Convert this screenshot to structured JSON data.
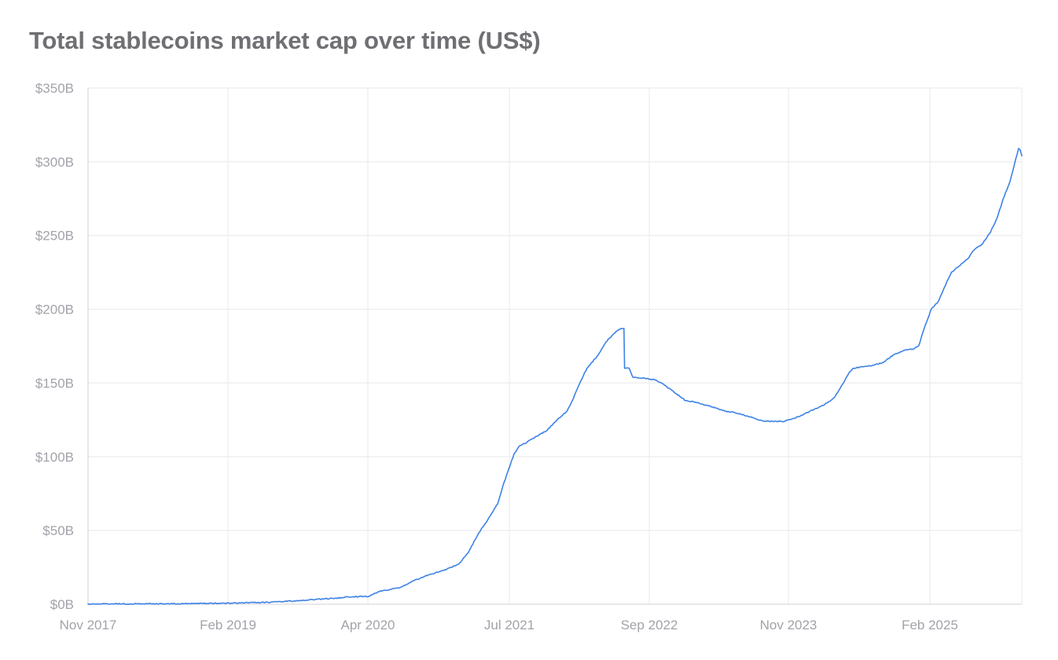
{
  "chart_data": {
    "type": "line",
    "title": "Total stablecoins market cap over time (US$)",
    "xlabel": "",
    "ylabel": "",
    "x_ticks": [
      "Nov 2017",
      "Feb 2019",
      "Apr 2020",
      "Jul 2021",
      "Sep 2022",
      "Nov 2023",
      "Feb 2025"
    ],
    "y_ticks": [
      "$0B",
      "$50B",
      "$100B",
      "$150B",
      "$200B",
      "$250B",
      "$300B",
      "$350B"
    ],
    "ylim": [
      0,
      350
    ],
    "y_unit": "billion US$",
    "xlim": [
      "2017-11-01",
      "2025-09-15"
    ],
    "grid": true,
    "legend": "none",
    "colors": {
      "series": "#3d82e6",
      "grid": "#ececf0",
      "text": "#a2a2aa",
      "title": "#6f6f74"
    },
    "series": [
      {
        "points": [
          [
            "2017-11-01",
            0.2
          ],
          [
            "2018-06-01",
            0.3
          ],
          [
            "2018-10-01",
            0.4
          ],
          [
            "2019-02-01",
            0.8
          ],
          [
            "2019-05-01",
            1.3
          ],
          [
            "2019-08-01",
            2.2
          ],
          [
            "2019-10-01",
            3.2
          ],
          [
            "2019-12-01",
            4.0
          ],
          [
            "2020-01-10",
            5.0
          ],
          [
            "2020-03-15",
            5.3
          ],
          [
            "2020-04-01",
            7.5
          ],
          [
            "2020-05-01",
            9.5
          ],
          [
            "2020-06-15",
            11.0
          ],
          [
            "2020-08-01",
            16.0
          ],
          [
            "2020-09-15",
            20.0
          ],
          [
            "2020-11-01",
            23.0
          ],
          [
            "2020-12-15",
            27.0
          ],
          [
            "2021-01-15",
            35.0
          ],
          [
            "2021-02-15",
            48.0
          ],
          [
            "2021-03-15",
            57.0
          ],
          [
            "2021-04-15",
            68.0
          ],
          [
            "2021-05-01",
            80.0
          ],
          [
            "2021-05-20",
            92.0
          ],
          [
            "2021-06-05",
            102.0
          ],
          [
            "2021-06-20",
            107.0
          ],
          [
            "2021-07-15",
            110.0
          ],
          [
            "2021-08-15",
            114.0
          ],
          [
            "2021-09-15",
            118.0
          ],
          [
            "2021-10-15",
            125.0
          ],
          [
            "2021-11-15",
            131.0
          ],
          [
            "2021-12-01",
            138.0
          ],
          [
            "2021-12-20",
            148.0
          ],
          [
            "2022-01-15",
            160.0
          ],
          [
            "2022-02-15",
            168.0
          ],
          [
            "2022-03-15",
            178.0
          ],
          [
            "2022-04-15",
            185.0
          ],
          [
            "2022-05-01",
            187.0
          ],
          [
            "2022-05-09",
            187.0
          ],
          [
            "2022-05-11",
            160.0
          ],
          [
            "2022-05-25",
            160.0
          ],
          [
            "2022-06-05",
            154.0
          ],
          [
            "2022-07-15",
            153.0
          ],
          [
            "2022-08-15",
            152.0
          ],
          [
            "2022-09-15",
            148.0
          ],
          [
            "2022-10-15",
            143.0
          ],
          [
            "2022-11-15",
            138.0
          ],
          [
            "2022-12-15",
            137.0
          ],
          [
            "2023-01-15",
            135.0
          ],
          [
            "2023-02-15",
            133.0
          ],
          [
            "2023-03-15",
            131.0
          ],
          [
            "2023-04-15",
            130.0
          ],
          [
            "2023-05-15",
            128.0
          ],
          [
            "2023-06-15",
            126.0
          ],
          [
            "2023-07-15",
            124.0
          ],
          [
            "2023-08-15",
            124.0
          ],
          [
            "2023-09-15",
            124.0
          ],
          [
            "2023-10-15",
            126.0
          ],
          [
            "2023-11-15",
            129.0
          ],
          [
            "2023-12-15",
            132.0
          ],
          [
            "2024-01-15",
            135.0
          ],
          [
            "2024-02-15",
            140.0
          ],
          [
            "2024-03-15",
            150.0
          ],
          [
            "2024-04-01",
            157.0
          ],
          [
            "2024-04-15",
            160.0
          ],
          [
            "2024-05-15",
            161.0
          ],
          [
            "2024-06-15",
            162.0
          ],
          [
            "2024-07-15",
            164.0
          ],
          [
            "2024-08-15",
            169.0
          ],
          [
            "2024-09-15",
            172.0
          ],
          [
            "2024-10-15",
            173.0
          ],
          [
            "2024-11-01",
            175.0
          ],
          [
            "2024-11-20",
            188.0
          ],
          [
            "2024-12-10",
            200.0
          ],
          [
            "2024-12-31",
            205.0
          ],
          [
            "2025-01-20",
            215.0
          ],
          [
            "2025-02-10",
            225.0
          ],
          [
            "2025-03-05",
            229.0
          ],
          [
            "2025-04-01",
            234.0
          ],
          [
            "2025-04-20",
            240.0
          ],
          [
            "2025-05-15",
            244.0
          ],
          [
            "2025-06-10",
            252.0
          ],
          [
            "2025-07-01",
            262.0
          ],
          [
            "2025-07-20",
            275.0
          ],
          [
            "2025-08-10",
            287.0
          ],
          [
            "2025-08-25",
            300.0
          ],
          [
            "2025-09-05",
            309.0
          ],
          [
            "2025-09-10",
            308.0
          ],
          [
            "2025-09-15",
            304.0
          ]
        ]
      }
    ]
  }
}
